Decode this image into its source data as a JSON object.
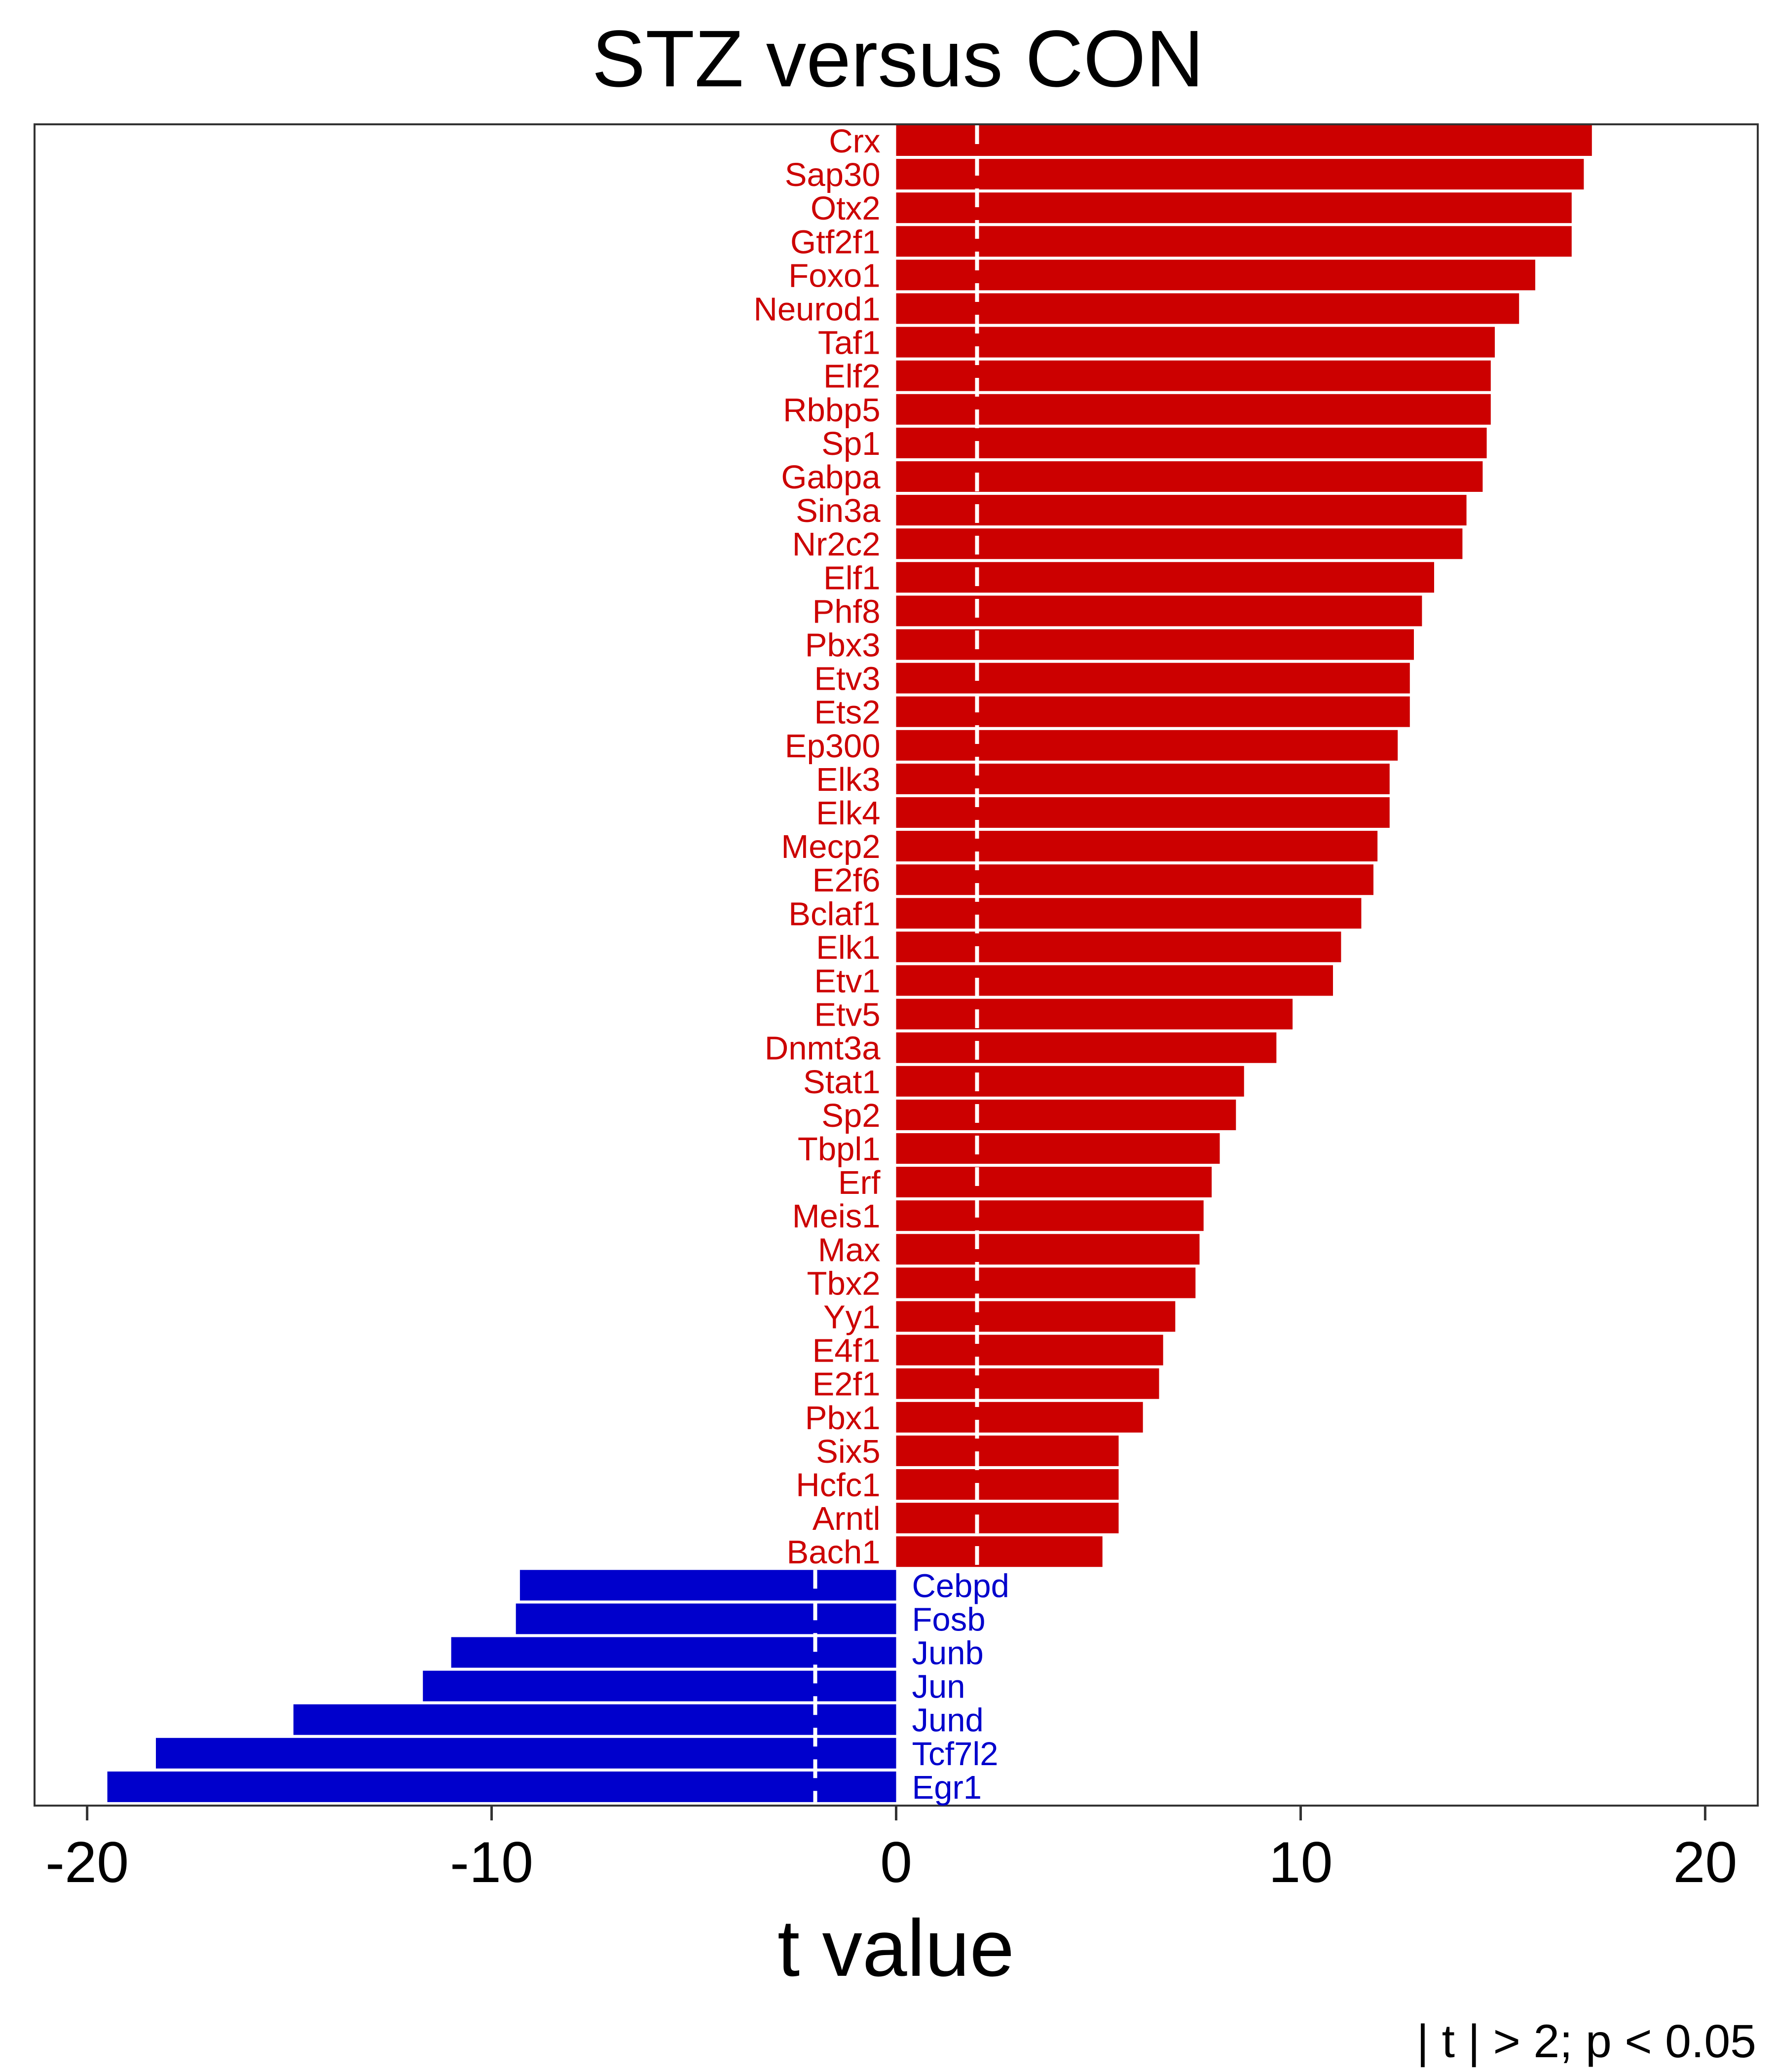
{
  "chart_data": {
    "type": "bar",
    "orientation": "horizontal",
    "title": "STZ  versus  CON",
    "xlabel": "t value",
    "ylabel": "",
    "caption": "| t | > 2; p < 0.05",
    "xlim": [
      -21.3,
      21.3
    ],
    "xticks": [
      -20,
      -10,
      0,
      10,
      20
    ],
    "xtick_labels": [
      "-20",
      "-10",
      "0",
      "10",
      "20"
    ],
    "threshold": 2,
    "grid": false,
    "legend": "none",
    "colors": {
      "positive": "#CC0000",
      "negative": "#0000CC",
      "threshold_line": "#ffffff",
      "frame": "#333333"
    },
    "categories": [
      "Crx",
      "Sap30",
      "Otx2",
      "Gtf2f1",
      "Foxo1",
      "Neurod1",
      "Taf1",
      "Elf2",
      "Rbbp5",
      "Sp1",
      "Gabpa",
      "Sin3a",
      "Nr2c2",
      "Elf1",
      "Phf8",
      "Pbx3",
      "Etv3",
      "Ets2",
      "Ep300",
      "Elk3",
      "Elk4",
      "Mecp2",
      "E2f6",
      "Bclaf1",
      "Elk1",
      "Etv1",
      "Etv5",
      "Dnmt3a",
      "Stat1",
      "Sp2",
      "Tbpl1",
      "Erf",
      "Meis1",
      "Max",
      "Tbx2",
      "Yy1",
      "E4f1",
      "E2f1",
      "Pbx1",
      "Six5",
      "Hcfc1",
      "Arntl",
      "Bach1",
      "Cebpd",
      "Fosb",
      "Junb",
      "Jun",
      "Jund",
      "Tcf7l2",
      "Egr1"
    ],
    "values": [
      17.2,
      17.0,
      16.7,
      16.7,
      15.8,
      15.4,
      14.8,
      14.7,
      14.7,
      14.6,
      14.5,
      14.1,
      14.0,
      13.3,
      13.0,
      12.8,
      12.7,
      12.7,
      12.4,
      12.2,
      12.2,
      11.9,
      11.8,
      11.5,
      11.0,
      10.8,
      9.8,
      9.4,
      8.6,
      8.4,
      8.0,
      7.8,
      7.6,
      7.5,
      7.4,
      6.9,
      6.6,
      6.5,
      6.1,
      5.5,
      5.5,
      5.5,
      5.1,
      -9.3,
      -9.4,
      -11.0,
      -11.7,
      -14.9,
      -18.3,
      -19.5
    ]
  }
}
